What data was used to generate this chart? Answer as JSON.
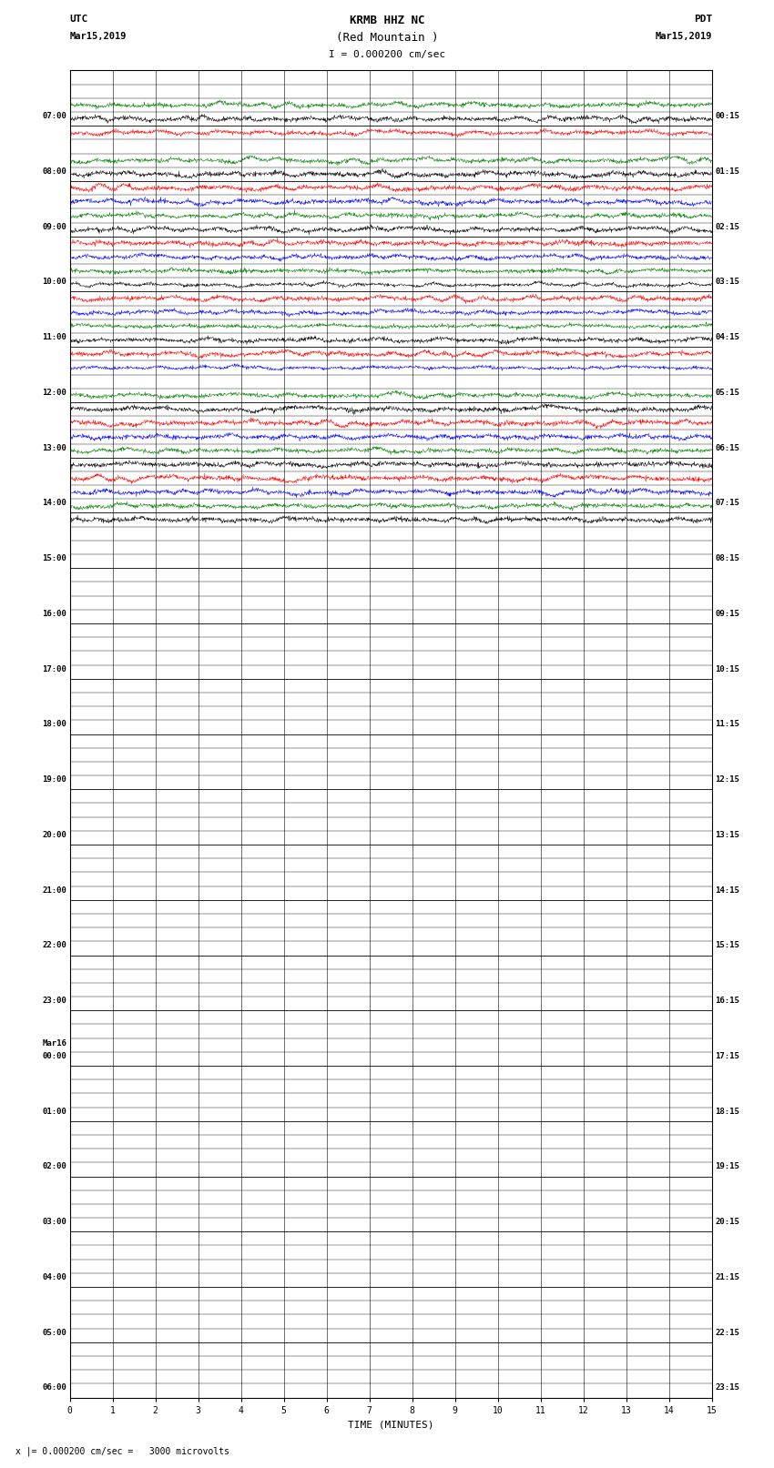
{
  "title_line1": "KRMB HHZ NC",
  "title_line2": "(Red Mountain )",
  "scale_text": "I = 0.000200 cm/sec",
  "footer_text": "x |= 0.000200 cm/sec =   3000 microvolts",
  "utc_label": "UTC",
  "utc_date": "Mar15,2019",
  "pdt_label": "PDT",
  "pdt_date": "Mar15,2019",
  "xlabel": "TIME (MINUTES)",
  "bg_color": "white",
  "colors_cycle": [
    "black",
    "red",
    "blue",
    "green"
  ],
  "n_total_rows": 96,
  "x_min": 0,
  "x_max": 15,
  "active_trace_rows": [
    {
      "row": 3,
      "color": "green",
      "amp": 0.3
    },
    {
      "row": 4,
      "color": "black",
      "amp": 0.32
    },
    {
      "row": 5,
      "color": "red",
      "amp": 0.28
    },
    {
      "row": 7,
      "color": "green",
      "amp": 0.3
    },
    {
      "row": 8,
      "color": "black",
      "amp": 0.32
    },
    {
      "row": 9,
      "color": "red",
      "amp": 0.32
    },
    {
      "row": 10,
      "color": "blue",
      "amp": 0.3
    },
    {
      "row": 11,
      "color": "green",
      "amp": 0.28
    },
    {
      "row": 12,
      "color": "black",
      "amp": 0.3
    },
    {
      "row": 13,
      "color": "red",
      "amp": 0.32
    },
    {
      "row": 14,
      "color": "blue",
      "amp": 0.28
    },
    {
      "row": 15,
      "color": "green",
      "amp": 0.28
    },
    {
      "row": 16,
      "color": "black",
      "amp": 0.22
    },
    {
      "row": 17,
      "color": "red",
      "amp": 0.3
    },
    {
      "row": 18,
      "color": "blue",
      "amp": 0.28
    },
    {
      "row": 19,
      "color": "green",
      "amp": 0.25
    },
    {
      "row": 20,
      "color": "black",
      "amp": 0.3
    },
    {
      "row": 21,
      "color": "red",
      "amp": 0.3
    },
    {
      "row": 22,
      "color": "blue",
      "amp": 0.22
    },
    {
      "row": 24,
      "color": "green",
      "amp": 0.28
    },
    {
      "row": 25,
      "color": "black",
      "amp": 0.32
    },
    {
      "row": 26,
      "color": "red",
      "amp": 0.32
    },
    {
      "row": 27,
      "color": "blue",
      "amp": 0.3
    },
    {
      "row": 28,
      "color": "green",
      "amp": 0.28
    },
    {
      "row": 29,
      "color": "black",
      "amp": 0.32
    },
    {
      "row": 30,
      "color": "red",
      "amp": 0.32
    },
    {
      "row": 31,
      "color": "blue",
      "amp": 0.3
    },
    {
      "row": 32,
      "color": "green",
      "amp": 0.28
    },
    {
      "row": 33,
      "color": "black",
      "amp": 0.32
    }
  ],
  "hour_label_rows_left": [
    [
      4,
      "07:00"
    ],
    [
      8,
      "08:00"
    ],
    [
      12,
      "09:00"
    ],
    [
      16,
      "10:00"
    ],
    [
      20,
      "11:00"
    ],
    [
      24,
      "12:00"
    ],
    [
      28,
      "13:00"
    ],
    [
      32,
      "14:00"
    ],
    [
      36,
      "15:00"
    ],
    [
      40,
      "16:00"
    ],
    [
      44,
      "17:00"
    ],
    [
      48,
      "18:00"
    ],
    [
      52,
      "19:00"
    ],
    [
      56,
      "20:00"
    ],
    [
      60,
      "21:00"
    ],
    [
      64,
      "22:00"
    ],
    [
      68,
      "23:00"
    ],
    [
      72,
      "Mar16\n00:00"
    ],
    [
      76,
      "01:00"
    ],
    [
      80,
      "02:00"
    ],
    [
      84,
      "03:00"
    ],
    [
      88,
      "04:00"
    ],
    [
      92,
      "05:00"
    ],
    [
      96,
      "06:00"
    ]
  ],
  "hour_label_rows_right": [
    [
      4,
      "00:15"
    ],
    [
      8,
      "01:15"
    ],
    [
      12,
      "02:15"
    ],
    [
      16,
      "03:15"
    ],
    [
      20,
      "04:15"
    ],
    [
      24,
      "05:15"
    ],
    [
      28,
      "06:15"
    ],
    [
      32,
      "07:15"
    ],
    [
      36,
      "08:15"
    ],
    [
      40,
      "09:15"
    ],
    [
      44,
      "10:15"
    ],
    [
      48,
      "11:15"
    ],
    [
      52,
      "12:15"
    ],
    [
      56,
      "13:15"
    ],
    [
      60,
      "14:15"
    ],
    [
      64,
      "15:15"
    ],
    [
      68,
      "16:15"
    ],
    [
      72,
      "17:15"
    ],
    [
      76,
      "18:15"
    ],
    [
      80,
      "19:15"
    ],
    [
      84,
      "20:15"
    ],
    [
      88,
      "21:15"
    ],
    [
      92,
      "22:15"
    ],
    [
      96,
      "23:15"
    ]
  ]
}
